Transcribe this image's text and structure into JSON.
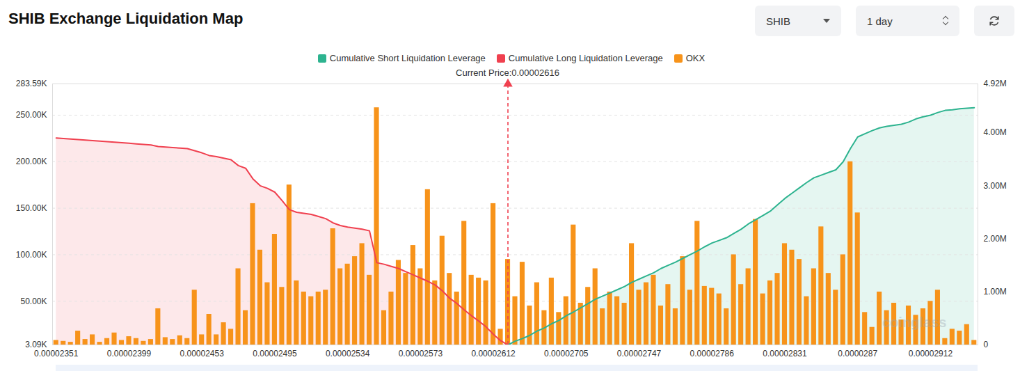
{
  "chart_data": {
    "type": "bar",
    "title": "SHIB Exchange Liquidation Map",
    "toolbar": [
      "SHIB",
      "1 day"
    ],
    "annotation": "Current Price:0.00002616",
    "watermark": "coinglass",
    "legend": "top",
    "grid": true,
    "categories": [
      "0.00002351",
      null,
      null,
      null,
      null,
      null,
      null,
      null,
      null,
      null,
      "0.00002399",
      null,
      null,
      null,
      null,
      null,
      null,
      null,
      null,
      null,
      "0.00002453",
      null,
      null,
      null,
      null,
      null,
      null,
      null,
      null,
      null,
      "0.00002495",
      null,
      null,
      null,
      null,
      null,
      null,
      null,
      null,
      null,
      "0.00002534",
      null,
      null,
      null,
      null,
      null,
      null,
      null,
      null,
      null,
      "0.00002573",
      null,
      null,
      null,
      null,
      null,
      null,
      null,
      null,
      null,
      "0.00002612",
      null,
      null,
      null,
      null,
      null,
      null,
      null,
      null,
      null,
      "0.00002705",
      null,
      null,
      null,
      null,
      null,
      null,
      null,
      null,
      null,
      "0.00002747",
      null,
      null,
      null,
      null,
      null,
      null,
      null,
      null,
      null,
      "0.00002786",
      null,
      null,
      null,
      null,
      null,
      null,
      null,
      null,
      null,
      "0.00002831",
      null,
      null,
      null,
      null,
      null,
      null,
      null,
      null,
      null,
      "0.0000287",
      null,
      null,
      null,
      null,
      null,
      null,
      null,
      null,
      null,
      "0.00002912",
      null,
      null,
      null,
      null,
      null,
      null
    ],
    "ylim": [
      3090,
      283590
    ],
    "yticks": [
      {
        "value": 3090,
        "label": "3.09K"
      },
      {
        "value": 50000,
        "label": "50.00K"
      },
      {
        "value": 100000,
        "label": "100.00K"
      },
      {
        "value": 150000,
        "label": "150.00K"
      },
      {
        "value": 200000,
        "label": "200.00K"
      },
      {
        "value": 250000,
        "label": "250.00K"
      },
      {
        "value": 283590,
        "label": "283.59K"
      }
    ],
    "y2lim": [
      0,
      4920000
    ],
    "y2ticks": [
      0,
      {
        "value": 1000000,
        "label": "1.00M"
      },
      {
        "value": 2000000,
        "label": "2.00M"
      },
      {
        "value": 3000000,
        "label": "3.00M"
      },
      {
        "value": 4000000,
        "label": "4.00M"
      },
      {
        "value": 4920000,
        "label": "4.92M"
      }
    ],
    "series": [
      {
        "name": "Cumulative Short Liquidation Leverage",
        "type": "area",
        "axis": "y2",
        "color": "#2db38f",
        "values": [
          null,
          null,
          null,
          null,
          null,
          null,
          null,
          null,
          null,
          null,
          null,
          null,
          null,
          null,
          null,
          null,
          null,
          null,
          null,
          null,
          null,
          null,
          null,
          null,
          null,
          null,
          null,
          null,
          null,
          null,
          null,
          null,
          null,
          null,
          null,
          null,
          null,
          null,
          null,
          null,
          null,
          null,
          null,
          null,
          null,
          null,
          null,
          null,
          null,
          null,
          null,
          null,
          null,
          null,
          null,
          null,
          null,
          null,
          null,
          null,
          null,
          null,
          0,
          70000,
          120000,
          180000,
          260000,
          320000,
          400000,
          460000,
          550000,
          620000,
          700000,
          780000,
          860000,
          920000,
          980000,
          1040000,
          1100000,
          1180000,
          1240000,
          1300000,
          1360000,
          1440000,
          1500000,
          1560000,
          1630000,
          1700000,
          1770000,
          1850000,
          1920000,
          1970000,
          2020000,
          2100000,
          2180000,
          2280000,
          2360000,
          2440000,
          2520000,
          2640000,
          2760000,
          2860000,
          2960000,
          3060000,
          3150000,
          3200000,
          3250000,
          3300000,
          3450000,
          3700000,
          3920000,
          3980000,
          4040000,
          4090000,
          4120000,
          4140000,
          4160000,
          4200000,
          4260000,
          4300000,
          4330000,
          4380000,
          4420000,
          4430000,
          4450000,
          4460000,
          4470000
        ]
      },
      {
        "name": "Cumulative Long Liquidation Leverage",
        "type": "area",
        "axis": "y2",
        "color": "#f0404f",
        "values": [
          3900000,
          3890000,
          3880000,
          3870000,
          3860000,
          3850000,
          3840000,
          3830000,
          3820000,
          3810000,
          3800000,
          3790000,
          3780000,
          3770000,
          3740000,
          3730000,
          3720000,
          3710000,
          3700000,
          3660000,
          3620000,
          3570000,
          3550000,
          3520000,
          3490000,
          3380000,
          3330000,
          3130000,
          3000000,
          2950000,
          2880000,
          2720000,
          2550000,
          2500000,
          2480000,
          2460000,
          2420000,
          2380000,
          2300000,
          2250000,
          2220000,
          2200000,
          2180000,
          2150000,
          1550000,
          1520000,
          1480000,
          1440000,
          1380000,
          1320000,
          1260000,
          1200000,
          1130000,
          1020000,
          880000,
          780000,
          660000,
          550000,
          450000,
          340000,
          200000,
          80000,
          0,
          null,
          null,
          null,
          null,
          null,
          null,
          null,
          null,
          null,
          null,
          null,
          null,
          null,
          null,
          null,
          null,
          null,
          null,
          null,
          null,
          null,
          null,
          null,
          null,
          null,
          null,
          null,
          null,
          null,
          null,
          null,
          null,
          null,
          null,
          null,
          null,
          null,
          null,
          null,
          null,
          null,
          null,
          null,
          null,
          null,
          null,
          null,
          null,
          null,
          null,
          null,
          null,
          null,
          null,
          null,
          null,
          null,
          null,
          null,
          null,
          null,
          null,
          null,
          null
        ]
      },
      {
        "name": "OKX",
        "type": "bar",
        "color": "#f7931a",
        "values": [
          8000,
          7000,
          6000,
          18000,
          9000,
          14000,
          6000,
          10000,
          16000,
          8000,
          12000,
          10000,
          7000,
          9000,
          42000,
          11000,
          9000,
          13000,
          10000,
          62000,
          14000,
          36000,
          14000,
          27000,
          20000,
          85000,
          40000,
          155000,
          105000,
          70000,
          122000,
          65000,
          175000,
          72000,
          60000,
          55000,
          60000,
          62000,
          128000,
          85000,
          90000,
          98000,
          112000,
          78000,
          258000,
          40000,
          60000,
          94000,
          80000,
          110000,
          85000,
          170000,
          72000,
          120000,
          80000,
          60000,
          136000,
          78000,
          75000,
          72000,
          155000,
          20000,
          95000,
          55000,
          92000,
          45000,
          70000,
          40000,
          75000,
          38000,
          55000,
          132000,
          48000,
          65000,
          85000,
          42000,
          60000,
          55000,
          48000,
          112000,
          62000,
          70000,
          78000,
          45000,
          68000,
          42000,
          98000,
          62000,
          136000,
          66000,
          64000,
          58000,
          42000,
          100000,
          68000,
          85000,
          138000,
          58000,
          72000,
          80000,
          112000,
          105000,
          95000,
          55000,
          85000,
          130000,
          80000,
          62000,
          100000,
          200000,
          145000,
          38000,
          22000,
          60000,
          40000,
          48000,
          30000,
          45000,
          35000,
          42000,
          50000,
          62000,
          10000,
          20000,
          18000,
          25000,
          8000
        ]
      }
    ]
  }
}
